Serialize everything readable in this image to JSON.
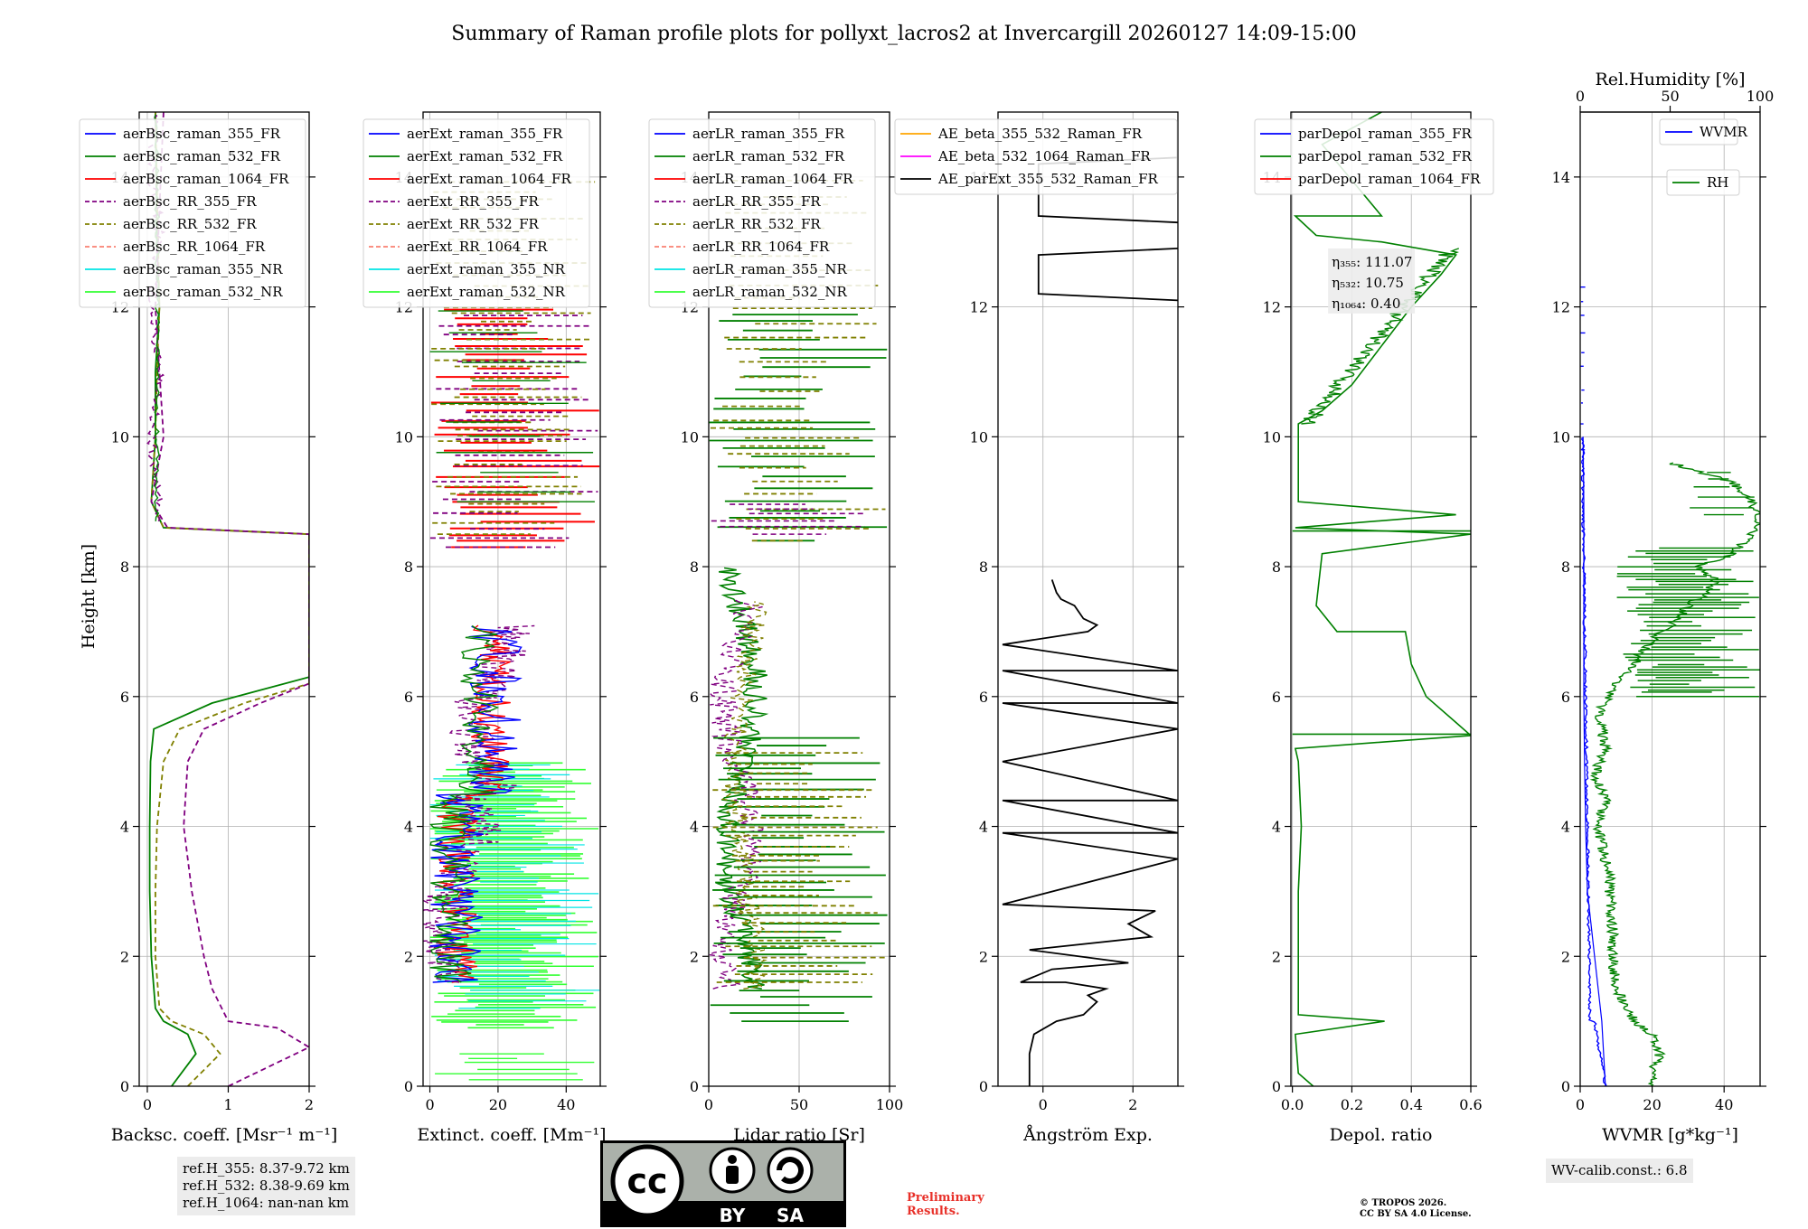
{
  "title": "Summary of Raman profile plots for pollyxt_lacros2 at Invercargill 20260127 14:09-15:00",
  "ylabel": "Height [km]",
  "colors": {
    "c355": "#0000ff",
    "c532": "#008000",
    "c1064": "#ff0000",
    "rr355": "#800080",
    "rr532": "#808000",
    "rr1064": "#fa8072",
    "nr355": "#00e5e5",
    "nr532": "#33ff33",
    "black": "#000000"
  },
  "chart_data": [
    {
      "type": "line",
      "xlabel": "Backsc. coeff. [Msr⁻¹ m⁻¹]",
      "xlim": [
        -0.1,
        2
      ],
      "xticks": [
        "0",
        "1",
        "2"
      ],
      "ylim": [
        0,
        15
      ],
      "yticks": [
        "0",
        "2",
        "4",
        "6",
        "8",
        "10",
        "12",
        "14"
      ],
      "legend": [
        "aerBsc_raman_355_FR",
        "aerBsc_raman_532_FR",
        "aerBsc_raman_1064_FR",
        "aerBsc_RR_355_FR",
        "aerBsc_RR_532_FR",
        "aerBsc_RR_1064_FR",
        "aerBsc_raman_355_NR",
        "aerBsc_raman_532_NR"
      ],
      "series": [
        {
          "name": "aerBsc_raman_532_FR",
          "x": [
            0.3,
            0.6,
            0.5,
            0.2,
            0.1,
            0.05,
            0.03,
            0.03,
            0.04,
            0.08,
            0.8,
            2,
            2,
            0.2,
            0.05,
            0.1,
            0.1,
            0.15,
            0.12,
            0.1
          ],
          "y": [
            0,
            0.5,
            0.8,
            1.0,
            1.2,
            2,
            3,
            4,
            5,
            5.5,
            5.9,
            6.3,
            8.5,
            8.6,
            9,
            10,
            11,
            12,
            13,
            15
          ]
        },
        {
          "name": "aerBsc_RR_532_FR",
          "x": [
            0.5,
            0.9,
            0.7,
            0.3,
            0.15,
            0.1,
            0.1,
            0.12,
            0.2,
            0.4,
            1.2,
            2,
            2,
            0.2,
            0.05,
            0.1,
            0.12,
            0.15,
            0.1
          ],
          "y": [
            0,
            0.5,
            0.8,
            1.0,
            1.2,
            2,
            3,
            4,
            5,
            5.5,
            5.9,
            6.2,
            8.5,
            8.6,
            9,
            10,
            11,
            12,
            15
          ]
        },
        {
          "name": "aerBsc_RR_355_FR",
          "x": [
            1,
            2,
            1.6,
            1.0,
            0.8,
            0.7,
            0.55,
            0.45,
            0.5,
            0.7,
            1.4,
            2,
            2,
            0.25,
            0.05,
            0.2,
            0.15,
            0.1,
            0.2
          ],
          "y": [
            0,
            0.6,
            0.9,
            1.0,
            1.5,
            2,
            3,
            4,
            5,
            5.5,
            5.9,
            6.2,
            8.5,
            8.6,
            9,
            10,
            11,
            12,
            15
          ]
        }
      ]
    },
    {
      "type": "line",
      "xlabel": "Extinct. coeff. [Mm⁻¹]",
      "xlim": [
        -2,
        50
      ],
      "xticks": [
        "0",
        "20",
        "40"
      ],
      "ylim": [
        0,
        15
      ],
      "yticks": [
        "0",
        "2",
        "4",
        "6",
        "8",
        "10",
        "12",
        "14"
      ],
      "legend": [
        "aerExt_raman_355_FR",
        "aerExt_raman_532_FR",
        "aerExt_raman_1064_FR",
        "aerExt_RR_355_FR",
        "aerExt_RR_532_FR",
        "aerExt_RR_1064_FR",
        "aerExt_raman_355_NR",
        "aerExt_raman_532_NR"
      ]
    },
    {
      "type": "line",
      "xlabel": "Lidar ratio [Sr]",
      "xlim": [
        0,
        100
      ],
      "xticks": [
        "0",
        "50",
        "100"
      ],
      "ylim": [
        0,
        15
      ],
      "yticks": [
        "0",
        "2",
        "4",
        "6",
        "8",
        "10",
        "12",
        "14"
      ],
      "legend": [
        "aerLR_raman_355_FR",
        "aerLR_raman_532_FR",
        "aerLR_raman_1064_FR",
        "aerLR_RR_355_FR",
        "aerLR_RR_532_FR",
        "aerLR_RR_1064_FR",
        "aerLR_raman_355_NR",
        "aerLR_raman_532_NR"
      ]
    },
    {
      "type": "line",
      "xlabel": "Ångström Exp.",
      "xlim": [
        -1,
        3
      ],
      "xticks": [
        "0",
        "2"
      ],
      "ylim": [
        0,
        15
      ],
      "yticks": [
        "0",
        "2",
        "4",
        "6",
        "8",
        "10",
        "12",
        "14"
      ],
      "legend": [
        "AE_beta_355_532_Raman_FR",
        "AE_beta_532_1064_Raman_FR",
        "AE_parExt_355_532_Raman_FR"
      ],
      "series": [
        {
          "name": "AE_parExt_355_532_Raman_FR",
          "x": [
            -0.3,
            -0.3,
            -0.2,
            0.3,
            0.9,
            1.2,
            1.0,
            1.4,
            0.5,
            -0.5,
            0.2,
            1.9,
            -0.3,
            2.4,
            1.9,
            2.5,
            -0.9,
            3,
            -0.9,
            3,
            -0.9,
            3,
            -0.9,
            3,
            -0.9,
            3,
            -0.9,
            3,
            -0.9,
            1.0,
            1.2,
            0.9,
            0.7,
            0.4,
            0.3,
            0.2
          ],
          "y": [
            0,
            0.5,
            0.8,
            1.0,
            1.1,
            1.3,
            1.4,
            1.5,
            1.6,
            1.6,
            1.8,
            1.9,
            2.1,
            2.3,
            2.5,
            2.7,
            2.8,
            3.5,
            3.9,
            3.9,
            4.4,
            4.4,
            5.0,
            5.5,
            5.9,
            5.9,
            6.4,
            6.4,
            6.8,
            7.0,
            7.1,
            7.2,
            7.4,
            7.5,
            7.6,
            7.8
          ]
        }
      ]
    },
    {
      "type": "line",
      "xlabel": "Depol. ratio",
      "xlim": [
        -0.005,
        0.6
      ],
      "xticks": [
        "0.0",
        "0.2",
        "0.4",
        "0.6"
      ],
      "ylim": [
        0,
        15
      ],
      "yticks": [
        "0",
        "2",
        "4",
        "6",
        "8",
        "10",
        "12",
        "14"
      ],
      "legend": [
        "parDepol_raman_355_FR",
        "parDepol_raman_532_FR",
        "parDepol_raman_1064_FR"
      ],
      "annotation": [
        "111.07",
        "10.75",
        "0.40"
      ],
      "series": [
        {
          "name": "parDepol_raman_532_FR",
          "x": [
            0.07,
            0.02,
            0.01,
            0.31,
            0.02,
            0.02,
            0.03,
            0.02,
            0.01,
            0.6,
            0.55,
            0.45,
            0.4,
            0.38,
            0.15,
            0.08,
            0.1,
            0.6,
            0.01,
            0.55,
            0.02,
            0.02,
            0.1,
            0.2,
            0.3,
            0.4,
            0.5,
            0.55,
            0.3,
            0.08,
            0.01,
            0.3,
            0.1,
            0.3
          ],
          "y": [
            0,
            0.2,
            0.8,
            1.0,
            1.1,
            3,
            4,
            5,
            5.2,
            5.4,
            5.6,
            6.0,
            6.5,
            7.0,
            7.0,
            7.4,
            8.2,
            8.5,
            8.6,
            8.8,
            9.0,
            10.2,
            10.4,
            10.8,
            11.4,
            12.0,
            12.5,
            12.8,
            13.0,
            13.1,
            13.4,
            13.4,
            14.5,
            15
          ]
        }
      ]
    },
    {
      "type": "line",
      "xlabel": "WVMR [g*kg⁻¹]",
      "xlim": [
        0,
        50
      ],
      "xticks": [
        "0",
        "20",
        "40"
      ],
      "ylim": [
        0,
        15
      ],
      "yticks": [
        "0",
        "2",
        "4",
        "6",
        "8",
        "10",
        "12",
        "14"
      ],
      "top_axis": {
        "label": "Rel.Humidity [%]",
        "ticks": [
          "0",
          "50",
          "100"
        ]
      },
      "legend": [
        "WVMR",
        "RH"
      ],
      "annotation": "WV-calib.const.: 6.8",
      "series": [
        {
          "name": "WVMR",
          "x": [
            7,
            6,
            4,
            2,
            1.5,
            1.2,
            1,
            1,
            1,
            1,
            0.8
          ],
          "y": [
            0,
            1,
            2,
            3,
            4,
            5,
            6,
            7,
            8,
            9,
            10
          ]
        },
        {
          "name": "RH",
          "x": [
            38,
            44,
            40,
            30,
            20,
            18,
            18,
            17,
            16,
            12,
            10,
            14,
            8,
            14,
            12,
            11,
            16,
            20,
            28,
            35,
            45,
            55,
            60,
            70,
            75,
            65,
            85,
            95,
            100,
            95,
            85,
            50
          ],
          "y": [
            0,
            0.5,
            0.8,
            1.0,
            1.5,
            2,
            2.4,
            2.8,
            3.3,
            3.7,
            4,
            4.4,
            4.8,
            5.2,
            5.5,
            5.8,
            6.0,
            6.2,
            6.4,
            6.7,
            7.0,
            7.2,
            7.4,
            7.6,
            7.8,
            8.0,
            8.2,
            8.5,
            8.8,
            9.0,
            9.3,
            9.6
          ]
        }
      ]
    }
  ],
  "notes": {
    "refh": [
      "ref.H_355: 8.37-9.72 km",
      "ref.H_532: 8.38-9.69 km",
      "ref.H_1064: nan-nan km"
    ],
    "license_by": "BY",
    "license_sa": "SA",
    "cc": "cc",
    "preliminary": [
      "Preliminary",
      "Results."
    ],
    "copyright": [
      "© TROPOS 2026.",
      "CC BY SA 4.0 License."
    ]
  },
  "eta_labels": [
    "η₃₅₅",
    "η₅₃₂",
    "η₁₀₆₄"
  ]
}
